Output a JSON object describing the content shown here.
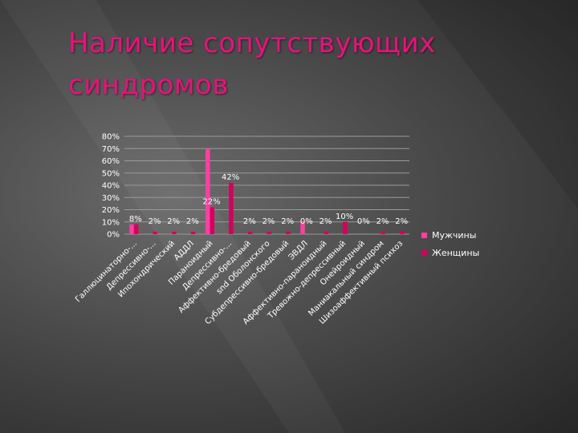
{
  "slide": {
    "title": "Наличие сопутствующих синдромов"
  },
  "colors": {
    "men": "#ff3fa1",
    "women": "#d3005e",
    "title": "#e8127c"
  },
  "chart_data": {
    "type": "bar",
    "title": "",
    "xlabel": "",
    "ylabel": "",
    "ylim": [
      0,
      80
    ],
    "yticks": [
      "0%",
      "10%",
      "20%",
      "30%",
      "40%",
      "50%",
      "60%",
      "70%",
      "80%"
    ],
    "categories": [
      "Галлюцинаторно-...",
      "Депрессивно-...",
      "Ипохондрический",
      "АДДЛ",
      "Параноидный",
      "Депрессивно-...",
      "Аффективно-бредовый",
      "snd Оболонского",
      "Субдепрессивно-бредовый",
      "ЭВДЛ",
      "Аффективно-параноидный",
      "Тревожно-депрессивный",
      "Онейроидный",
      "Маниакальный синдром",
      "Шизоаффективный психоз"
    ],
    "series": [
      {
        "name": "Мужчины",
        "values": [
          8,
          0,
          0,
          0,
          70,
          0,
          0,
          0,
          0,
          10,
          0,
          0,
          0,
          0,
          0
        ]
      },
      {
        "name": "Женщины",
        "values": [
          8,
          2,
          2,
          2,
          22,
          42,
          2,
          2,
          2,
          0,
          2,
          10,
          0,
          2,
          2
        ]
      }
    ],
    "data_labels": [
      "8%",
      "2%",
      "2%",
      "2%",
      "22%",
      "42%",
      "2%",
      "2%",
      "2%",
      "0%",
      "2%",
      "10%",
      "0%",
      "2%",
      "2%"
    ],
    "legend_position": "right"
  }
}
